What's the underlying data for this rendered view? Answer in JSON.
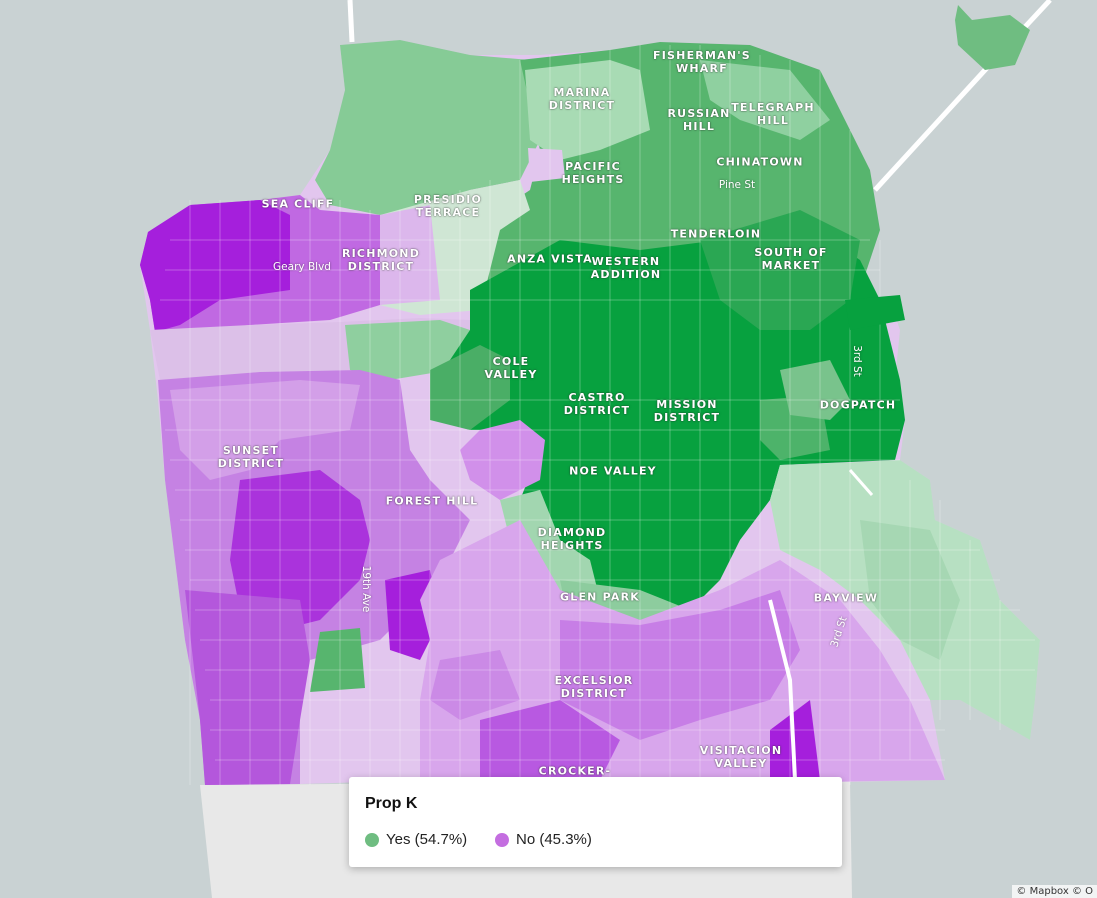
{
  "colors": {
    "background": "#c9d2d3",
    "yes": "#6fbd81",
    "no": "#c46ee0",
    "yes_strong": "#07a13f",
    "no_strong": "#a51fdc",
    "ocean_land_south": "#e8e8e8"
  },
  "map": {
    "neighborhood_labels": [
      {
        "id": "fishermans-wharf",
        "text": "FISHERMAN'S\nWHARF"
      },
      {
        "id": "marina",
        "text": "MARINA\nDISTRICT"
      },
      {
        "id": "russian-hill",
        "text": "RUSSIAN\nHILL"
      },
      {
        "id": "telegraph-hill",
        "text": "TELEGRAPH\nHILL"
      },
      {
        "id": "chinatown",
        "text": "CHINATOWN"
      },
      {
        "id": "pacific-heights",
        "text": "PACIFIC\nHEIGHTS"
      },
      {
        "id": "sea-cliff",
        "text": "SEA CLIFF"
      },
      {
        "id": "presidio-terrace",
        "text": "PRESIDIO\nTERRACE"
      },
      {
        "id": "tenderloin",
        "text": "TENDERLOIN"
      },
      {
        "id": "richmond",
        "text": "RICHMOND\nDISTRICT"
      },
      {
        "id": "anza-vista",
        "text": "ANZA VISTA"
      },
      {
        "id": "western-addition",
        "text": "WESTERN\nADDITION"
      },
      {
        "id": "south-of-market",
        "text": "SOUTH OF\nMARKET"
      },
      {
        "id": "cole-valley",
        "text": "COLE\nVALLEY"
      },
      {
        "id": "castro",
        "text": "CASTRO\nDISTRICT"
      },
      {
        "id": "mission",
        "text": "MISSION\nDISTRICT"
      },
      {
        "id": "dogpatch",
        "text": "DOGPATCH"
      },
      {
        "id": "sunset",
        "text": "SUNSET\nDISTRICT"
      },
      {
        "id": "noe-valley",
        "text": "NOE VALLEY"
      },
      {
        "id": "forest-hill",
        "text": "FOREST HILL"
      },
      {
        "id": "diamond-heights",
        "text": "DIAMOND\nHEIGHTS"
      },
      {
        "id": "glen-park",
        "text": "GLEN PARK"
      },
      {
        "id": "bayview",
        "text": "BAYVIEW"
      },
      {
        "id": "excelsior",
        "text": "EXCELSIOR\nDISTRICT"
      },
      {
        "id": "visitacion-valley",
        "text": "VISITACION\nVALLEY"
      },
      {
        "id": "crocker",
        "text": "CROCKER-"
      }
    ],
    "street_labels": [
      {
        "id": "pine-st",
        "text": "Pine St"
      },
      {
        "id": "geary-blvd",
        "text": "Geary Blvd"
      },
      {
        "id": "3rd-st-north",
        "text": "3rd St"
      },
      {
        "id": "19th-ave",
        "text": "19th Ave"
      },
      {
        "id": "3rd-st-south",
        "text": "3rd St"
      }
    ]
  },
  "legend": {
    "title": "Prop K",
    "items": [
      {
        "label": "Yes (54.7%)",
        "color": "#6fbd81"
      },
      {
        "label": "No (45.3%)",
        "color": "#c46ee0"
      }
    ]
  },
  "attribution": "© Mapbox © O"
}
